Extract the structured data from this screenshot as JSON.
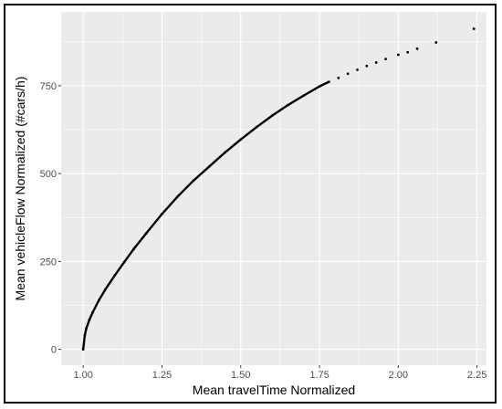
{
  "chart_data": {
    "type": "scatter",
    "title": "",
    "xlabel": "Mean travelTime Normalized",
    "ylabel": "Mean vehicleFlow Normalized (#cars/h)",
    "xlim": [
      0.93,
      2.28
    ],
    "ylim": [
      -45,
      960
    ],
    "x_ticks": [
      1.0,
      1.25,
      1.5,
      1.75,
      2.0,
      2.25
    ],
    "x_tick_labels": [
      "1.00",
      "1.25",
      "1.50",
      "1.75",
      "2.00",
      "2.25"
    ],
    "y_ticks": [
      0,
      250,
      500,
      750
    ],
    "y_tick_labels": [
      "0",
      "250",
      "500",
      "750"
    ],
    "grid": true,
    "panel_background": "#ebebeb",
    "grid_color": "#ffffff",
    "point_color": "#000000",
    "points": [
      {
        "x": 1.0,
        "y": 0
      },
      {
        "x": 1.005,
        "y": 40
      },
      {
        "x": 1.01,
        "y": 60
      },
      {
        "x": 1.02,
        "y": 85
      },
      {
        "x": 1.03,
        "y": 105
      },
      {
        "x": 1.05,
        "y": 140
      },
      {
        "x": 1.07,
        "y": 170
      },
      {
        "x": 1.1,
        "y": 210
      },
      {
        "x": 1.13,
        "y": 248
      },
      {
        "x": 1.16,
        "y": 285
      },
      {
        "x": 1.2,
        "y": 330
      },
      {
        "x": 1.25,
        "y": 385
      },
      {
        "x": 1.3,
        "y": 435
      },
      {
        "x": 1.35,
        "y": 480
      },
      {
        "x": 1.4,
        "y": 520
      },
      {
        "x": 1.45,
        "y": 560
      },
      {
        "x": 1.5,
        "y": 597
      },
      {
        "x": 1.55,
        "y": 632
      },
      {
        "x": 1.6,
        "y": 665
      },
      {
        "x": 1.65,
        "y": 695
      },
      {
        "x": 1.7,
        "y": 722
      },
      {
        "x": 1.75,
        "y": 748
      },
      {
        "x": 1.78,
        "y": 761
      },
      {
        "x": 1.81,
        "y": 772
      },
      {
        "x": 1.84,
        "y": 784
      },
      {
        "x": 1.87,
        "y": 795
      },
      {
        "x": 1.9,
        "y": 806
      },
      {
        "x": 1.93,
        "y": 816
      },
      {
        "x": 1.96,
        "y": 826
      },
      {
        "x": 2.0,
        "y": 838
      },
      {
        "x": 2.03,
        "y": 845
      },
      {
        "x": 2.06,
        "y": 855
      },
      {
        "x": 2.12,
        "y": 873
      },
      {
        "x": 2.24,
        "y": 912
      }
    ]
  }
}
